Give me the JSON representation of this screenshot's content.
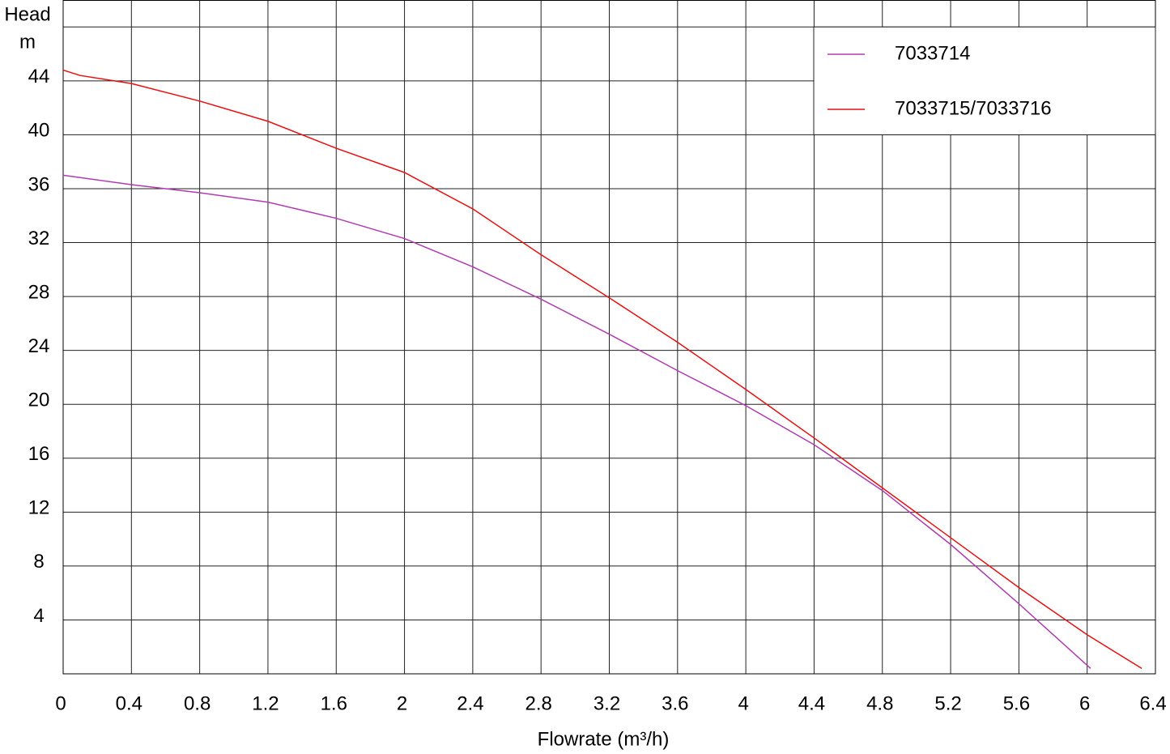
{
  "chart_data": {
    "type": "line",
    "y_label": [
      "Head",
      "m"
    ],
    "x_label": "Flowrate (m³/h)",
    "xlim": [
      0,
      6.4
    ],
    "ylim": [
      0,
      50
    ],
    "xticks": [
      0,
      0.4,
      0.8,
      1.2,
      1.6,
      2,
      2.4,
      2.8,
      3.2,
      3.6,
      4,
      4.4,
      4.8,
      5.2,
      5.6,
      6,
      6.4
    ],
    "yticks": [
      4,
      8,
      12,
      16,
      20,
      24,
      28,
      32,
      36,
      40,
      44
    ],
    "grid": true,
    "legend": "upper right",
    "series": [
      {
        "name": "7033714",
        "color": "#b03cb0",
        "x": [
          0,
          0.4,
          0.8,
          1.2,
          1.6,
          2.0,
          2.4,
          2.8,
          3.2,
          3.6,
          4.0,
          4.4,
          4.8,
          5.2,
          5.6,
          6.02
        ],
        "values": [
          37,
          36.3,
          35.7,
          35,
          33.8,
          32.3,
          30.2,
          27.8,
          25.2,
          22.5,
          19.9,
          17,
          13.6,
          9.6,
          5.2,
          0.4
        ]
      },
      {
        "name": "7033715/7033716",
        "color": "#e81010",
        "x": [
          0,
          0.1,
          0.4,
          0.8,
          1.2,
          1.6,
          2.0,
          2.4,
          2.8,
          3.2,
          3.6,
          4.0,
          4.4,
          4.8,
          5.2,
          5.6,
          6.0,
          6.32
        ],
        "values": [
          44.8,
          44.4,
          43.8,
          42.5,
          41,
          39,
          37.2,
          34.5,
          31.1,
          27.9,
          24.6,
          21.1,
          17.5,
          13.8,
          10.1,
          6.4,
          2.9,
          0.4
        ]
      }
    ]
  }
}
